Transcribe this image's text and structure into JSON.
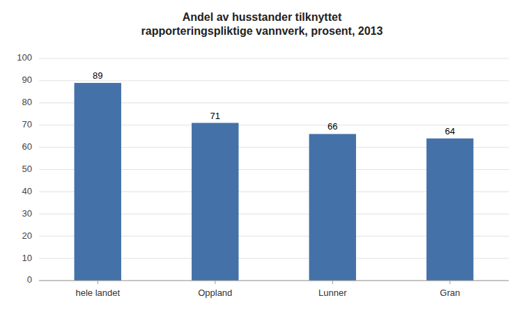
{
  "chart_data": {
    "type": "bar",
    "title": "Andel av husstander tilknyttet\nrapporteringspliktige vannverk, prosent, 2013",
    "categories": [
      "hele landet",
      "Oppland",
      "Lunner",
      "Gran"
    ],
    "values": [
      89,
      71,
      66,
      64
    ],
    "color": "#4472a8",
    "ylim": [
      0,
      100
    ],
    "yticks": [
      0,
      10,
      20,
      30,
      40,
      50,
      60,
      70,
      80,
      90,
      100
    ],
    "grid": true,
    "data_labels": true
  }
}
